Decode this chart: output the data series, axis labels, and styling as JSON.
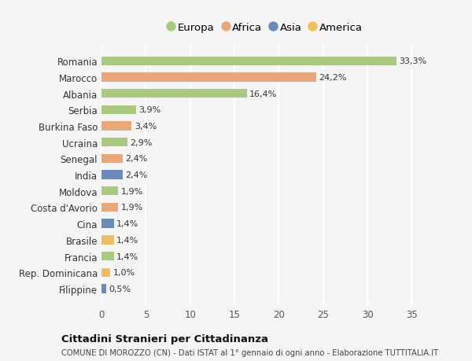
{
  "countries": [
    "Romania",
    "Marocco",
    "Albania",
    "Serbia",
    "Burkina Faso",
    "Ucraina",
    "Senegal",
    "India",
    "Moldova",
    "Costa d'Avorio",
    "Cina",
    "Brasile",
    "Francia",
    "Rep. Dominicana",
    "Filippine"
  ],
  "values": [
    33.3,
    24.2,
    16.4,
    3.9,
    3.4,
    2.9,
    2.4,
    2.4,
    1.9,
    1.9,
    1.4,
    1.4,
    1.4,
    1.0,
    0.5
  ],
  "labels": [
    "33,3%",
    "24,2%",
    "16,4%",
    "3,9%",
    "3,4%",
    "2,9%",
    "2,4%",
    "2,4%",
    "1,9%",
    "1,9%",
    "1,4%",
    "1,4%",
    "1,4%",
    "1,0%",
    "0,5%"
  ],
  "continents": [
    "Europa",
    "Africa",
    "Europa",
    "Europa",
    "Africa",
    "Europa",
    "Africa",
    "Asia",
    "Europa",
    "Africa",
    "Asia",
    "America",
    "Europa",
    "America",
    "Asia"
  ],
  "continent_colors": {
    "Europa": "#a8c97f",
    "Africa": "#e8a87c",
    "Asia": "#6b8cba",
    "America": "#f0c060"
  },
  "legend_order": [
    "Europa",
    "Africa",
    "Asia",
    "America"
  ],
  "title": "Cittadini Stranieri per Cittadinanza",
  "subtitle": "COMUNE DI MOROZZO (CN) - Dati ISTAT al 1° gennaio di ogni anno - Elaborazione TUTTITALIA.IT",
  "xlim": [
    0,
    37
  ],
  "xticks": [
    0,
    5,
    10,
    15,
    20,
    25,
    30,
    35
  ],
  "background_color": "#f5f5f5",
  "grid_color": "#ffffff",
  "bar_height": 0.55
}
